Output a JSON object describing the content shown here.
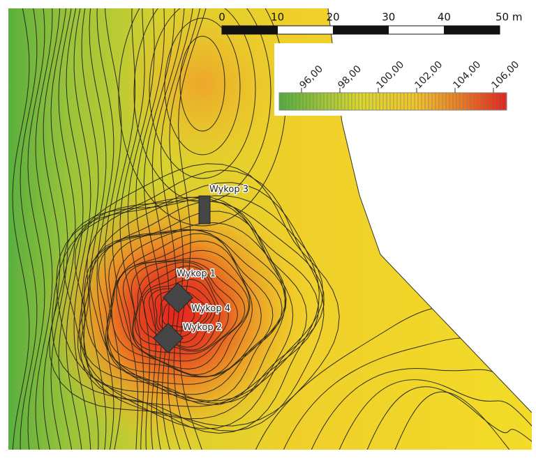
{
  "scale_bar": {
    "labels": [
      "0",
      "10",
      "20",
      "30",
      "40",
      "50 m"
    ]
  },
  "legend": {
    "labels": [
      "96,00",
      "98,00",
      "100,00",
      "102,00",
      "104,00",
      "106,00"
    ]
  },
  "trenches": [
    {
      "label": "Wykop 1"
    },
    {
      "label": "Wykop 2"
    },
    {
      "label": "Wykop 3"
    },
    {
      "label": "Wykop 4"
    }
  ]
}
